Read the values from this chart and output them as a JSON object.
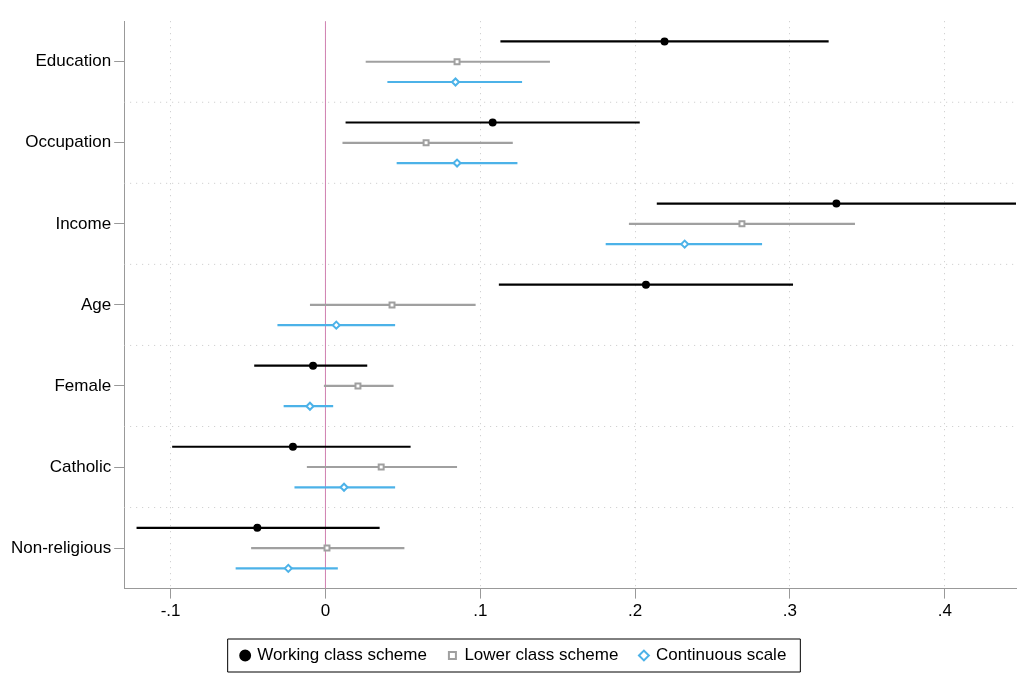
{
  "chart_data": {
    "type": "scatter",
    "orientation": "horizontal",
    "categories": [
      "Education",
      "Occupation",
      "Income",
      "Age",
      "Female",
      "Catholic",
      "Non-religious"
    ],
    "xlim": [
      -0.13,
      0.446
    ],
    "xticks": [
      {
        "value": -0.1,
        "label": "-.1"
      },
      0,
      {
        "value": 0.1,
        "label": ".1"
      },
      {
        "value": 0.2,
        "label": ".2"
      },
      {
        "value": 0.3,
        "label": ".3"
      },
      {
        "value": 0.4,
        "label": ".4"
      }
    ],
    "series": [
      {
        "name": "Working class scheme",
        "color": "#000000",
        "marker": "circle",
        "values": [
          0.219,
          0.108,
          0.33,
          0.207,
          -0.008,
          -0.021,
          -0.044
        ],
        "errors": [
          [
            0.113,
            0.325
          ],
          [
            0.013,
            0.203
          ],
          [
            0.214,
            0.446
          ],
          [
            0.112,
            0.302
          ],
          [
            -0.046,
            0.027
          ],
          [
            -0.099,
            0.055
          ],
          [
            -0.122,
            0.035
          ]
        ]
      },
      {
        "name": "Lower class scheme",
        "color": "#a0a0a0",
        "marker": "square",
        "values": [
          0.085,
          0.065,
          0.269,
          0.043,
          0.021,
          0.036,
          0.001
        ],
        "errors": [
          [
            0.026,
            0.145
          ],
          [
            0.011,
            0.121
          ],
          [
            0.196,
            0.342
          ],
          [
            -0.01,
            0.097
          ],
          [
            -0.001,
            0.044
          ],
          [
            -0.012,
            0.085
          ],
          [
            -0.048,
            0.051
          ]
        ]
      },
      {
        "name": "Continuous scale",
        "color": "#4cb2e8",
        "marker": "diamond",
        "values": [
          0.084,
          0.085,
          0.232,
          0.007,
          -0.01,
          0.012,
          -0.024
        ],
        "errors": [
          [
            0.04,
            0.127
          ],
          [
            0.046,
            0.124
          ],
          [
            0.181,
            0.282
          ],
          [
            -0.031,
            0.045
          ],
          [
            -0.027,
            0.005
          ],
          [
            -0.02,
            0.045
          ],
          [
            -0.058,
            0.008
          ]
        ]
      }
    ],
    "ref_lines": [
      {
        "axis": "x",
        "value": 0,
        "color": "#d080b0"
      }
    ],
    "grid": true,
    "legend": "bottom"
  }
}
